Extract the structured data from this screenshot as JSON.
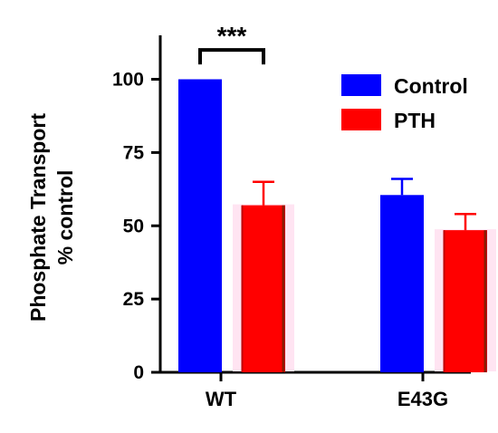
{
  "chart_data": {
    "type": "bar",
    "categories": [
      "WT",
      "E43G"
    ],
    "series": [
      {
        "name": "Control",
        "values": [
          100,
          60.5
        ],
        "errors": [
          0,
          5.5
        ],
        "color": "#0000ff"
      },
      {
        "name": "PTH",
        "values": [
          57,
          48.5
        ],
        "errors": [
          8,
          5.5
        ],
        "color": "#ff0000"
      }
    ],
    "ylabel": [
      "Phosphate Transport",
      "% control"
    ],
    "ylim": [
      0,
      115
    ],
    "yticks": [
      0,
      25,
      50,
      75,
      100
    ],
    "ytick_labels": [
      "0",
      "25",
      "50",
      "75",
      "100"
    ],
    "legend": {
      "placement": "top-right",
      "entries": [
        "Control",
        "PTH"
      ]
    },
    "annotations": [
      {
        "text": "***",
        "between": [
          "WT:Control",
          "WT:PTH"
        ],
        "level": 110
      }
    ],
    "grid": false
  }
}
